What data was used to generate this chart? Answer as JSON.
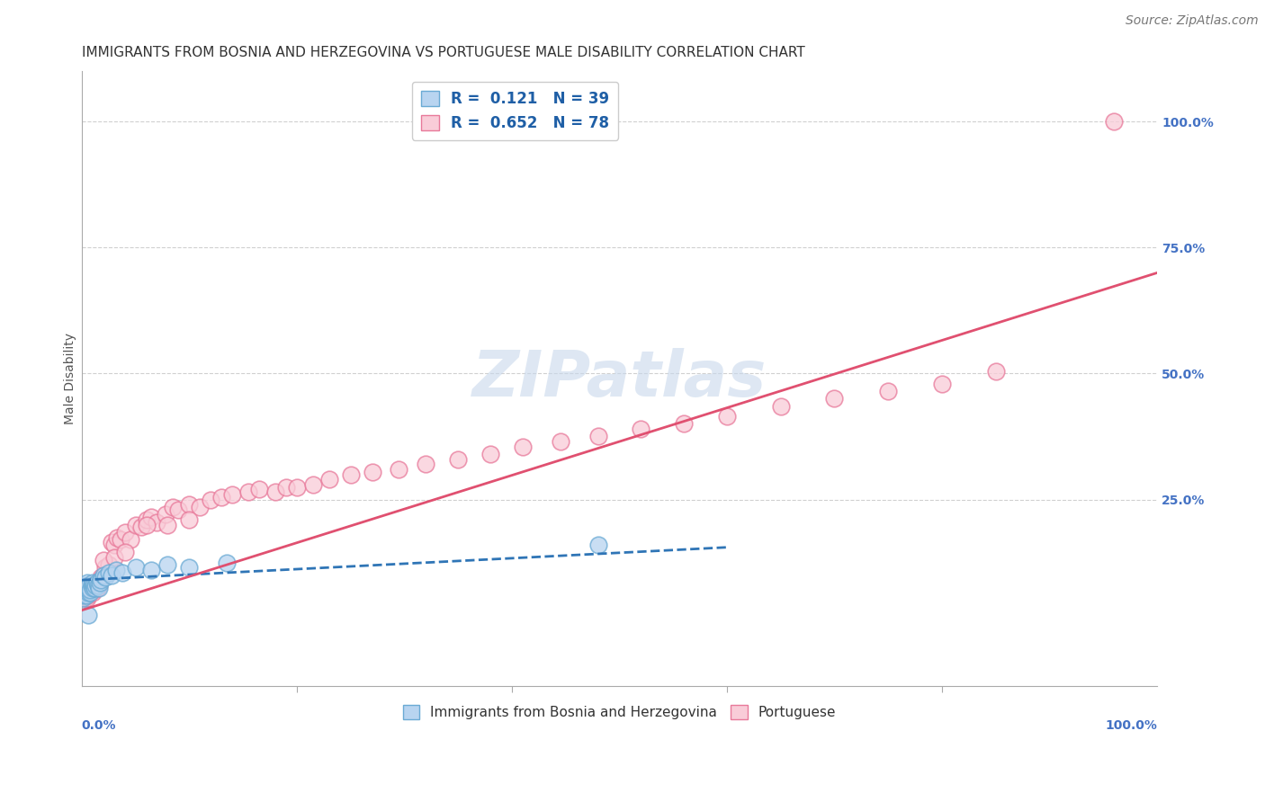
{
  "title": "IMMIGRANTS FROM BOSNIA AND HERZEGOVINA VS PORTUGUESE MALE DISABILITY CORRELATION CHART",
  "source": "Source: ZipAtlas.com",
  "ylabel": "Male Disability",
  "ytick_labels": [
    "100.0%",
    "75.0%",
    "50.0%",
    "25.0%"
  ],
  "ytick_values": [
    1.0,
    0.75,
    0.5,
    0.25
  ],
  "xlim": [
    0.0,
    1.0
  ],
  "ylim": [
    -0.12,
    1.1
  ],
  "watermark": "ZIPatlas",
  "bosnia_x": [
    0.001,
    0.002,
    0.002,
    0.003,
    0.003,
    0.004,
    0.004,
    0.005,
    0.005,
    0.006,
    0.006,
    0.007,
    0.007,
    0.008,
    0.008,
    0.009,
    0.01,
    0.01,
    0.011,
    0.012,
    0.013,
    0.014,
    0.015,
    0.016,
    0.017,
    0.018,
    0.02,
    0.022,
    0.025,
    0.028,
    0.032,
    0.038,
    0.05,
    0.065,
    0.08,
    0.1,
    0.135,
    0.48,
    0.006
  ],
  "bosnia_y": [
    0.055,
    0.06,
    0.065,
    0.07,
    0.075,
    0.06,
    0.08,
    0.075,
    0.085,
    0.065,
    0.07,
    0.075,
    0.08,
    0.065,
    0.07,
    0.08,
    0.075,
    0.085,
    0.08,
    0.075,
    0.08,
    0.085,
    0.08,
    0.075,
    0.085,
    0.09,
    0.1,
    0.095,
    0.105,
    0.1,
    0.11,
    0.105,
    0.115,
    0.11,
    0.12,
    0.115,
    0.125,
    0.16,
    0.02
  ],
  "portuguese_x": [
    0.001,
    0.002,
    0.002,
    0.003,
    0.003,
    0.004,
    0.004,
    0.005,
    0.005,
    0.006,
    0.006,
    0.007,
    0.007,
    0.008,
    0.009,
    0.01,
    0.01,
    0.011,
    0.012,
    0.013,
    0.014,
    0.015,
    0.016,
    0.017,
    0.018,
    0.02,
    0.022,
    0.025,
    0.028,
    0.03,
    0.033,
    0.036,
    0.04,
    0.045,
    0.05,
    0.055,
    0.06,
    0.065,
    0.07,
    0.078,
    0.085,
    0.09,
    0.1,
    0.11,
    0.12,
    0.13,
    0.14,
    0.155,
    0.165,
    0.18,
    0.19,
    0.2,
    0.215,
    0.23,
    0.25,
    0.27,
    0.295,
    0.32,
    0.35,
    0.38,
    0.41,
    0.445,
    0.48,
    0.52,
    0.56,
    0.6,
    0.65,
    0.7,
    0.75,
    0.8,
    0.02,
    0.03,
    0.04,
    0.06,
    0.08,
    0.1,
    0.85,
    0.96
  ],
  "portuguese_y": [
    0.05,
    0.055,
    0.06,
    0.065,
    0.07,
    0.06,
    0.065,
    0.055,
    0.07,
    0.06,
    0.065,
    0.07,
    0.075,
    0.065,
    0.07,
    0.065,
    0.075,
    0.07,
    0.075,
    0.08,
    0.075,
    0.085,
    0.08,
    0.09,
    0.095,
    0.1,
    0.115,
    0.12,
    0.165,
    0.16,
    0.175,
    0.17,
    0.185,
    0.17,
    0.2,
    0.195,
    0.21,
    0.215,
    0.205,
    0.22,
    0.235,
    0.23,
    0.24,
    0.235,
    0.25,
    0.255,
    0.26,
    0.265,
    0.27,
    0.265,
    0.275,
    0.275,
    0.28,
    0.29,
    0.3,
    0.305,
    0.31,
    0.32,
    0.33,
    0.34,
    0.355,
    0.365,
    0.375,
    0.39,
    0.4,
    0.415,
    0.435,
    0.45,
    0.465,
    0.48,
    0.13,
    0.135,
    0.145,
    0.2,
    0.2,
    0.21,
    0.505,
    1.0
  ],
  "bosnia_trend_x": [
    0.0,
    0.6
  ],
  "bosnia_trend_y": [
    0.09,
    0.155
  ],
  "portuguese_trend_x": [
    0.0,
    1.0
  ],
  "portuguese_trend_y": [
    0.03,
    0.7
  ],
  "grid_color": "#d0d0d0",
  "background_color": "#ffffff",
  "title_fontsize": 11,
  "axis_label_fontsize": 10,
  "tick_fontsize": 10,
  "legend_fontsize": 12,
  "source_fontsize": 10,
  "watermark_fontsize": 52,
  "watermark_color": "#c8d8ec",
  "watermark_alpha": 0.6
}
